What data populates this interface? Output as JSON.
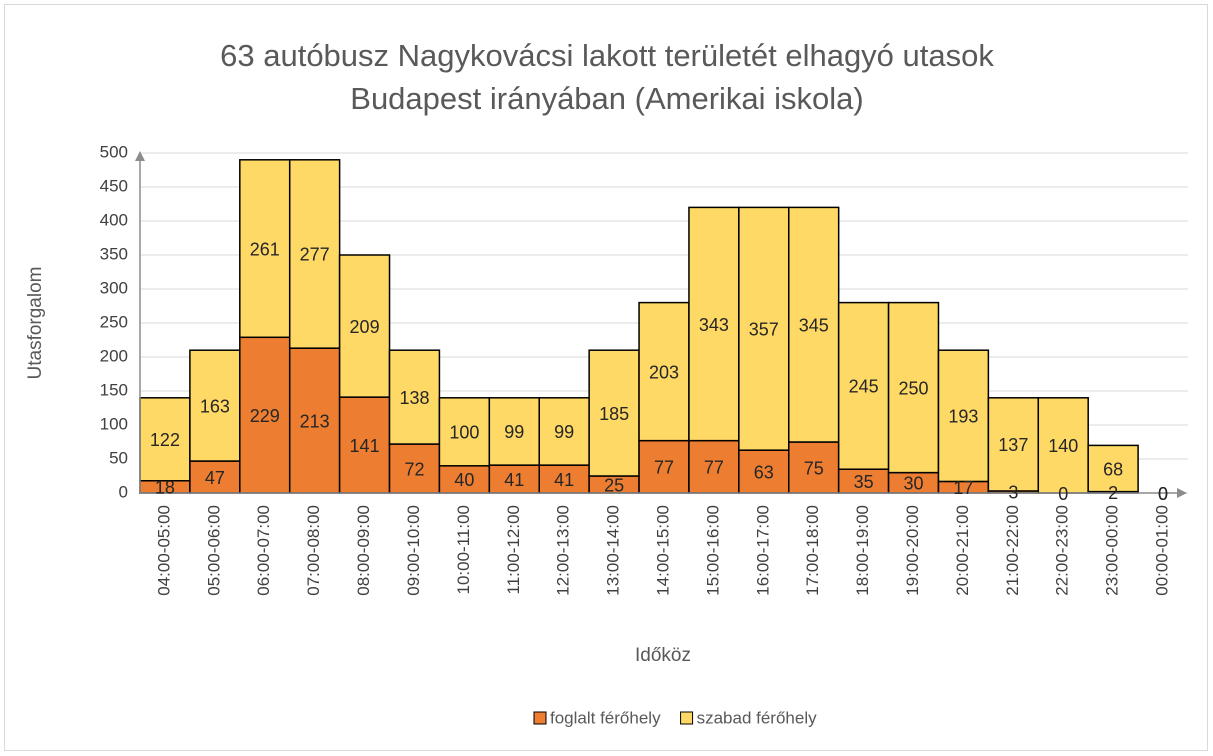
{
  "chart_data": {
    "type": "stacked_bar",
    "title": [
      "63 autóbusz Nagykovácsi lakott területét elhagyó utasok",
      "Budapest irányában (Amerikai iskola)"
    ],
    "x_label": "Időköz",
    "y_label": "Utasforgalom",
    "categories": [
      "04:00-05:00",
      "05:00-06:00",
      "06:00-07:00",
      "07:00-08:00",
      "08:00-09:00",
      "09:00-10:00",
      "10:00-11:00",
      "11:00-12:00",
      "12:00-13:00",
      "13:00-14:00",
      "14:00-15:00",
      "15:00-16:00",
      "16:00-17:00",
      "17:00-18:00",
      "18:00-19:00",
      "19:00-20:00",
      "20:00-21:00",
      "21:00-22:00",
      "22:00-23:00",
      "23:00-00:00",
      "00:00-01:00"
    ],
    "series": [
      {
        "name": "foglalt férőhely",
        "color": "#ed7d31",
        "values": [
          18,
          47,
          229,
          213,
          141,
          72,
          40,
          41,
          41,
          25,
          77,
          77,
          63,
          75,
          35,
          30,
          17,
          3,
          0,
          2,
          0
        ]
      },
      {
        "name": "szabad férőhely",
        "color": "#ffd966",
        "values": [
          122,
          163,
          261,
          277,
          209,
          138,
          100,
          99,
          99,
          185,
          203,
          343,
          357,
          345,
          245,
          250,
          193,
          137,
          140,
          68,
          0
        ]
      }
    ],
    "ylim": [
      0,
      500
    ],
    "yticks": [
      0,
      50,
      100,
      150,
      200,
      250,
      300,
      350,
      400,
      450,
      500
    ],
    "grid": true,
    "legend": "bottom"
  }
}
